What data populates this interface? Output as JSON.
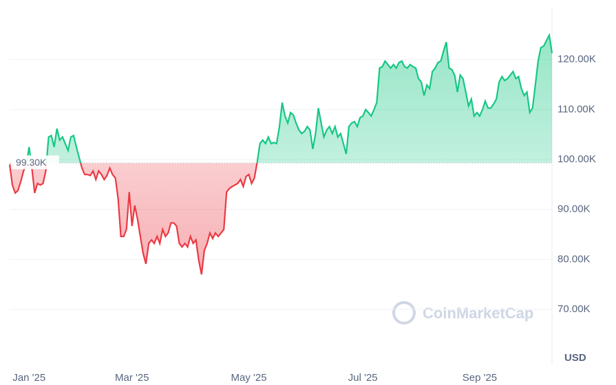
{
  "chart_data": {
    "type": "line",
    "values": [
      99.0,
      94.9,
      93.3,
      93.8,
      95.6,
      97.7,
      99.0,
      102.5,
      98.3,
      93.3,
      95.2,
      94.9,
      95.2,
      97.7,
      104.5,
      104.8,
      102.5,
      106.2,
      103.9,
      104.5,
      103.2,
      101.8,
      104.5,
      104.8,
      102.5,
      100.4,
      98.3,
      97.0,
      97.0,
      96.8,
      97.7,
      96.0,
      97.7,
      97.0,
      96.0,
      96.8,
      98.3,
      97.0,
      96.3,
      92.2,
      84.6,
      84.6,
      86.0,
      93.5,
      86.7,
      90.8,
      88.0,
      84.6,
      81.2,
      79.1,
      83.2,
      83.9,
      83.2,
      84.6,
      83.2,
      86.0,
      84.6,
      85.3,
      87.3,
      87.3,
      86.7,
      83.2,
      82.5,
      83.2,
      82.5,
      84.6,
      83.2,
      83.9,
      79.8,
      77.0,
      81.8,
      83.2,
      85.3,
      84.2,
      85.3,
      84.6,
      85.3,
      86.0,
      93.5,
      94.2,
      94.6,
      94.9,
      95.2,
      96.0,
      94.6,
      96.6,
      97.0,
      95.2,
      96.3,
      99.5,
      103.2,
      103.9,
      103.2,
      104.5,
      103.2,
      103.4,
      103.2,
      106.6,
      111.4,
      108.7,
      107.3,
      109.4,
      108.9,
      107.3,
      105.9,
      105.2,
      105.6,
      106.6,
      105.9,
      102.1,
      105.2,
      110.3,
      107.3,
      104.5,
      105.9,
      106.6,
      105.2,
      106.6,
      104.5,
      105.2,
      103.2,
      101.1,
      106.6,
      107.3,
      107.6,
      106.6,
      108.4,
      108.7,
      110.0,
      109.4,
      108.7,
      110.0,
      111.4,
      118.3,
      118.6,
      119.7,
      119.0,
      118.3,
      119.0,
      118.3,
      119.4,
      119.7,
      118.6,
      118.3,
      119.0,
      118.6,
      118.3,
      116.2,
      115.5,
      112.8,
      114.9,
      114.2,
      117.6,
      118.3,
      119.4,
      119.7,
      121.7,
      123.5,
      118.3,
      118.0,
      116.9,
      113.5,
      116.9,
      116.2,
      113.5,
      110.7,
      112.1,
      108.7,
      109.4,
      108.7,
      110.0,
      111.7,
      110.3,
      110.3,
      111.1,
      112.1,
      115.5,
      116.6,
      115.8,
      116.2,
      116.9,
      117.6,
      116.2,
      116.6,
      114.2,
      112.8,
      113.5,
      109.4,
      110.3,
      114.9,
      119.7,
      122.4,
      122.7,
      123.8,
      124.9,
      121.3
    ],
    "color_up": "#16c784",
    "color_down": "#ea3943",
    "baseline": {
      "value": 99.3,
      "label": "99.30K"
    },
    "xlim": [
      0,
      195
    ],
    "xticks": [
      {
        "value": 7,
        "label": "Jan '25"
      },
      {
        "value": 44,
        "label": "Mar '25"
      },
      {
        "value": 86,
        "label": "May '25"
      },
      {
        "value": 127,
        "label": "Jul '25"
      },
      {
        "value": 169,
        "label": "Sep '25"
      }
    ],
    "ylim": [
      59,
      130
    ],
    "yticks": [
      {
        "value": 70,
        "label": "70.00K"
      },
      {
        "value": 80,
        "label": "80.00K"
      },
      {
        "value": 90,
        "label": "90.00K"
      },
      {
        "value": 100,
        "label": "100.00K"
      },
      {
        "value": 110,
        "label": "110.00K"
      },
      {
        "value": 120,
        "label": "120.00K"
      }
    ],
    "y_unit": "USD",
    "watermark": "CoinMarketCap",
    "grid": true
  }
}
